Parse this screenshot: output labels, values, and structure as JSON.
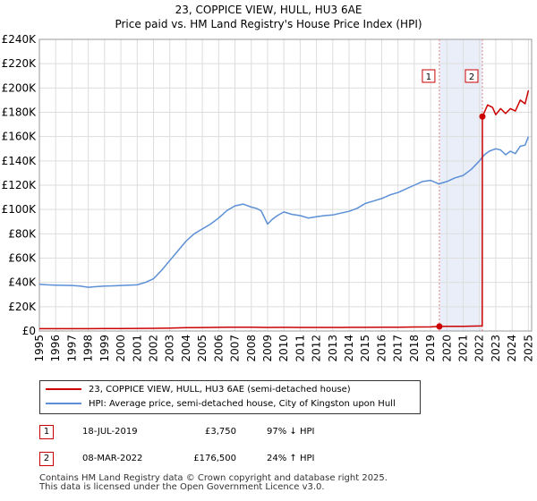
{
  "title_line1": "23, COPPICE VIEW, HULL, HU3 6AE",
  "title_line2": "Price paid vs. HM Land Registry's House Price Index (HPI)",
  "colors": {
    "property": "#cc0000",
    "hpi": "#5b8fd6",
    "grid": "#dddddd",
    "shade": "#e9eef9",
    "marker_line": "#e58a8a"
  },
  "chart_data": {
    "type": "line",
    "title": "Price paid vs. HM Land Registry's House Price Index (HPI)",
    "xlim": [
      1995,
      2025.2
    ],
    "ylim": [
      0,
      240000
    ],
    "x_ticks": [
      1995,
      1996,
      1997,
      1998,
      1999,
      2000,
      2001,
      2002,
      2003,
      2004,
      2005,
      2006,
      2007,
      2008,
      2009,
      2010,
      2011,
      2012,
      2013,
      2014,
      2015,
      2016,
      2017,
      2018,
      2019,
      2020,
      2021,
      2022,
      2023,
      2024,
      2025
    ],
    "y_ticks": [
      {
        "value": 0,
        "label": "£0"
      },
      {
        "value": 20000,
        "label": "£20K"
      },
      {
        "value": 40000,
        "label": "£40K"
      },
      {
        "value": 60000,
        "label": "£60K"
      },
      {
        "value": 80000,
        "label": "£80K"
      },
      {
        "value": 100000,
        "label": "£100K"
      },
      {
        "value": 120000,
        "label": "£120K"
      },
      {
        "value": 140000,
        "label": "£140K"
      },
      {
        "value": 160000,
        "label": "£160K"
      },
      {
        "value": 180000,
        "label": "£180K"
      },
      {
        "value": 200000,
        "label": "£200K"
      },
      {
        "value": 220000,
        "label": "£220K"
      },
      {
        "value": 240000,
        "label": "£240K"
      }
    ],
    "shaded_region": [
      2019.54,
      2022.18
    ],
    "series": [
      {
        "name": "23, COPPICE VIEW, HULL, HU3 6AE (semi-detached house)",
        "color": "#cc0000",
        "x": [
          1995.0,
          1996.0,
          1997.0,
          1998.0,
          1999.0,
          2000.0,
          2001.0,
          2002.0,
          2003.0,
          2004.0,
          2005.0,
          2006.0,
          2007.0,
          2008.0,
          2009.0,
          2010.0,
          2011.0,
          2012.0,
          2013.0,
          2014.0,
          2015.0,
          2016.0,
          2017.0,
          2018.0,
          2019.0,
          2019.54,
          2020.0,
          2021.0,
          2022.0,
          2022.17,
          2022.18,
          2022.3,
          2022.5,
          2022.8,
          2023.0,
          2023.3,
          2023.6,
          2023.9,
          2024.2,
          2024.5,
          2024.8,
          2025.0
        ],
        "y": [
          1900,
          1900,
          1950,
          1900,
          2000,
          2050,
          2100,
          2200,
          2400,
          2700,
          2900,
          3000,
          3150,
          3100,
          2950,
          3000,
          2950,
          2950,
          2950,
          3000,
          3050,
          3100,
          3200,
          3300,
          3400,
          3750,
          3800,
          3900,
          4100,
          4200,
          176500,
          180000,
          186000,
          184000,
          178000,
          183000,
          179000,
          183000,
          181000,
          190000,
          187000,
          198000
        ]
      },
      {
        "name": "HPI: Average price, semi-detached house, City of Kingston upon Hull",
        "color": "#5b8fd6",
        "x": [
          1995.0,
          1995.5,
          1996.0,
          1997.0,
          1997.5,
          1998.0,
          1998.5,
          1999.0,
          1999.5,
          2000.0,
          2000.5,
          2001.0,
          2001.5,
          2002.0,
          2002.5,
          2003.0,
          2003.5,
          2004.0,
          2004.5,
          2005.0,
          2005.5,
          2006.0,
          2006.5,
          2007.0,
          2007.5,
          2008.0,
          2008.3,
          2008.6,
          2009.0,
          2009.3,
          2009.6,
          2010.0,
          2010.5,
          2011.0,
          2011.5,
          2012.0,
          2012.5,
          2013.0,
          2013.5,
          2014.0,
          2014.5,
          2015.0,
          2015.5,
          2016.0,
          2016.5,
          2017.0,
          2017.5,
          2018.0,
          2018.5,
          2019.0,
          2019.5,
          2020.0,
          2020.5,
          2021.0,
          2021.5,
          2022.0,
          2022.3,
          2022.6,
          2023.0,
          2023.3,
          2023.6,
          2023.9,
          2024.2,
          2024.5,
          2024.8,
          2025.0
        ],
        "y": [
          38500,
          38000,
          37800,
          37500,
          37000,
          36000,
          36500,
          37000,
          37200,
          37500,
          37800,
          38000,
          40000,
          43000,
          50000,
          58000,
          66000,
          74000,
          80000,
          84000,
          88000,
          93000,
          99000,
          103000,
          104500,
          102000,
          101000,
          99000,
          88000,
          92000,
          95000,
          98000,
          96000,
          95000,
          93000,
          94000,
          95000,
          95500,
          97000,
          98500,
          101000,
          105000,
          107000,
          109000,
          112000,
          114000,
          117000,
          120000,
          123000,
          124000,
          121000,
          123000,
          126000,
          128000,
          133000,
          140000,
          145000,
          148000,
          150000,
          149000,
          145000,
          148000,
          146000,
          152000,
          153000,
          160000
        ]
      }
    ],
    "markers": [
      {
        "label": "1",
        "x": 2019.54,
        "y": 3750
      },
      {
        "label": "2",
        "x": 2022.18,
        "y": 176500
      }
    ]
  },
  "legend": {
    "property": "23, COPPICE VIEW, HULL, HU3 6AE (semi-detached house)",
    "hpi": "HPI: Average price, semi-detached house, City of Kingston upon Hull"
  },
  "transactions": [
    {
      "label": "1",
      "date": "18-JUL-2019",
      "price": "£3,750",
      "hpi": "97% ↓ HPI"
    },
    {
      "label": "2",
      "date": "08-MAR-2022",
      "price": "£176,500",
      "hpi": "24% ↑ HPI"
    }
  ],
  "footer_line1": "Contains HM Land Registry data © Crown copyright and database right 2025.",
  "footer_line2": "This data is licensed under the Open Government Licence v3.0."
}
